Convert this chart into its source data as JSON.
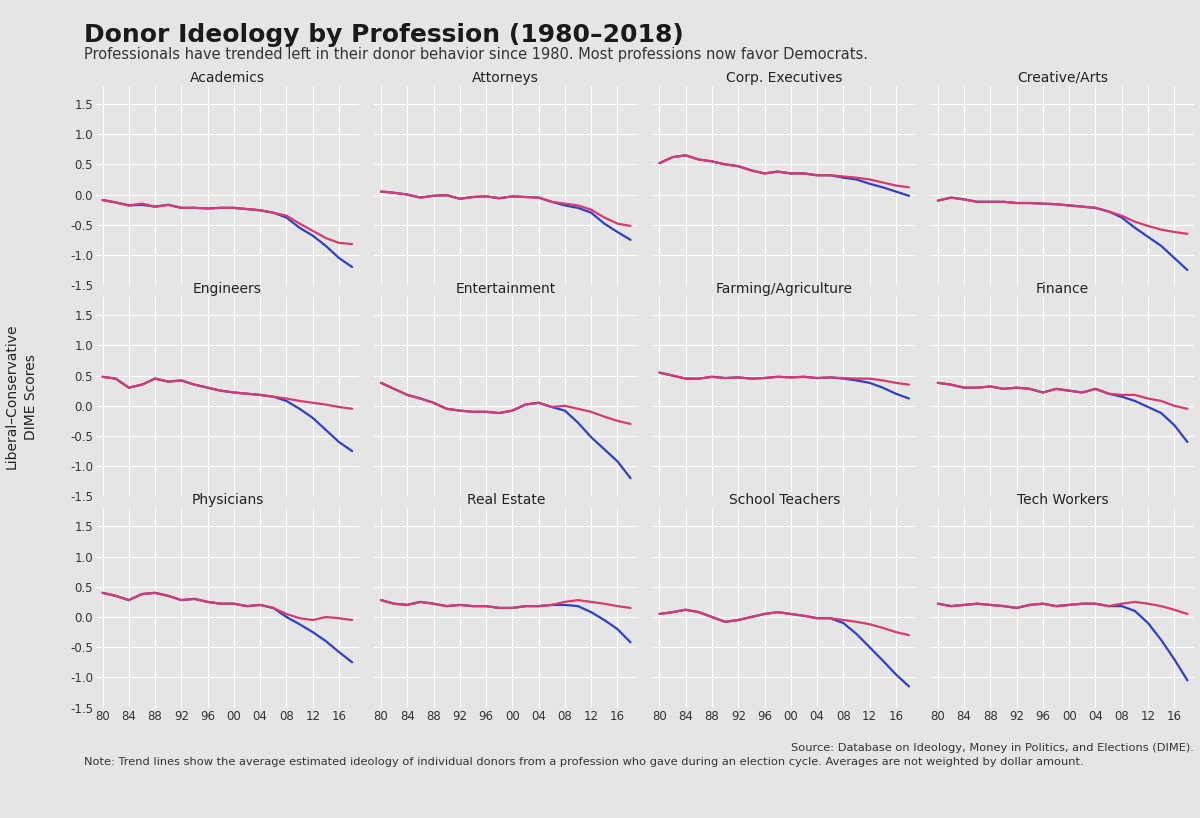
{
  "title": "Donor Ideology by Profession (1980–2018)",
  "subtitle": "Professionals have trended left in their donor behavior since 1980. Most professions now favor Democrats.",
  "ylabel": "Liberal–Conservative\nDIME Scores",
  "source": "Source: Database on Ideology, Money in Politics, and Elections (DIME).",
  "note": "Note: Trend lines show the average estimated ideology of individual donors from a profession who gave during an election cycle. Averages are not weighted by dollar amount.",
  "x_values": [
    1980,
    1982,
    1984,
    1986,
    1988,
    1990,
    1992,
    1994,
    1996,
    1998,
    2000,
    2002,
    2004,
    2006,
    2008,
    2010,
    2012,
    2014,
    2016,
    2018
  ],
  "x_tick_positions": [
    1980,
    1984,
    1988,
    1992,
    1996,
    2000,
    2004,
    2008,
    2012,
    2016
  ],
  "x_tick_labels": [
    "80",
    "84",
    "88",
    "92",
    "96",
    "00",
    "04",
    "08",
    "12",
    "16"
  ],
  "background_color": "#e5e5e5",
  "subplot_bg": "#e5e5e5",
  "grid_color": "#ffffff",
  "professions": [
    "Academics",
    "Attorneys",
    "Corp. Executives",
    "Creative/Arts",
    "Engineers",
    "Entertainment",
    "Farming/Agriculture",
    "Finance",
    "Physicians",
    "Real Estate",
    "School Teachers",
    "Tech Workers"
  ],
  "data": {
    "Academics": {
      "pink": [
        -0.09,
        -0.13,
        -0.18,
        -0.15,
        -0.2,
        -0.17,
        -0.22,
        -0.22,
        -0.23,
        -0.22,
        -0.22,
        -0.24,
        -0.26,
        -0.3,
        -0.35,
        -0.48,
        -0.6,
        -0.72,
        -0.8,
        -0.82
      ],
      "blue": [
        -0.09,
        -0.13,
        -0.18,
        -0.17,
        -0.2,
        -0.17,
        -0.22,
        -0.22,
        -0.23,
        -0.22,
        -0.22,
        -0.24,
        -0.26,
        -0.3,
        -0.38,
        -0.55,
        -0.68,
        -0.85,
        -1.05,
        -1.2
      ]
    },
    "Attorneys": {
      "pink": [
        0.05,
        0.03,
        0.0,
        -0.05,
        -0.02,
        -0.01,
        -0.07,
        -0.04,
        -0.03,
        -0.06,
        -0.03,
        -0.04,
        -0.05,
        -0.12,
        -0.15,
        -0.18,
        -0.25,
        -0.38,
        -0.48,
        -0.52
      ],
      "blue": [
        0.05,
        0.03,
        0.0,
        -0.05,
        -0.02,
        -0.01,
        -0.07,
        -0.04,
        -0.03,
        -0.06,
        -0.03,
        -0.04,
        -0.05,
        -0.12,
        -0.18,
        -0.22,
        -0.3,
        -0.48,
        -0.62,
        -0.75
      ]
    },
    "Corp. Executives": {
      "pink": [
        0.52,
        0.62,
        0.65,
        0.58,
        0.55,
        0.5,
        0.47,
        0.4,
        0.35,
        0.38,
        0.35,
        0.35,
        0.32,
        0.32,
        0.3,
        0.28,
        0.25,
        0.2,
        0.15,
        0.12
      ],
      "blue": [
        0.52,
        0.62,
        0.65,
        0.58,
        0.55,
        0.5,
        0.47,
        0.4,
        0.35,
        0.38,
        0.35,
        0.35,
        0.32,
        0.32,
        0.28,
        0.25,
        0.18,
        0.12,
        0.05,
        -0.02
      ]
    },
    "Creative/Arts": {
      "pink": [
        -0.1,
        -0.05,
        -0.08,
        -0.12,
        -0.12,
        -0.12,
        -0.14,
        -0.14,
        -0.15,
        -0.16,
        -0.18,
        -0.2,
        -0.22,
        -0.28,
        -0.35,
        -0.45,
        -0.52,
        -0.58,
        -0.62,
        -0.65
      ],
      "blue": [
        -0.1,
        -0.05,
        -0.08,
        -0.12,
        -0.12,
        -0.12,
        -0.14,
        -0.14,
        -0.15,
        -0.16,
        -0.18,
        -0.2,
        -0.22,
        -0.28,
        -0.38,
        -0.55,
        -0.7,
        -0.85,
        -1.05,
        -1.25
      ]
    },
    "Engineers": {
      "pink": [
        0.48,
        0.45,
        0.3,
        0.35,
        0.45,
        0.4,
        0.42,
        0.35,
        0.3,
        0.25,
        0.22,
        0.2,
        0.18,
        0.15,
        0.12,
        0.08,
        0.05,
        0.02,
        -0.02,
        -0.05
      ],
      "blue": [
        0.48,
        0.45,
        0.3,
        0.35,
        0.45,
        0.4,
        0.42,
        0.35,
        0.3,
        0.25,
        0.22,
        0.2,
        0.18,
        0.15,
        0.08,
        -0.05,
        -0.2,
        -0.4,
        -0.6,
        -0.75
      ]
    },
    "Entertainment": {
      "pink": [
        0.38,
        0.28,
        0.18,
        0.12,
        0.05,
        -0.05,
        -0.08,
        -0.1,
        -0.1,
        -0.12,
        -0.08,
        0.02,
        0.05,
        -0.02,
        0.0,
        -0.05,
        -0.1,
        -0.18,
        -0.25,
        -0.3
      ],
      "blue": [
        0.38,
        0.28,
        0.18,
        0.12,
        0.05,
        -0.05,
        -0.08,
        -0.1,
        -0.1,
        -0.12,
        -0.08,
        0.02,
        0.05,
        -0.02,
        -0.08,
        -0.28,
        -0.52,
        -0.72,
        -0.92,
        -1.2
      ]
    },
    "Farming/Agriculture": {
      "pink": [
        0.55,
        0.5,
        0.45,
        0.45,
        0.48,
        0.46,
        0.47,
        0.45,
        0.46,
        0.48,
        0.47,
        0.48,
        0.46,
        0.47,
        0.46,
        0.45,
        0.45,
        0.42,
        0.38,
        0.35
      ],
      "blue": [
        0.55,
        0.5,
        0.45,
        0.45,
        0.48,
        0.46,
        0.47,
        0.45,
        0.46,
        0.48,
        0.47,
        0.48,
        0.46,
        0.47,
        0.45,
        0.42,
        0.38,
        0.3,
        0.2,
        0.12
      ]
    },
    "Finance": {
      "pink": [
        0.38,
        0.35,
        0.3,
        0.3,
        0.32,
        0.28,
        0.3,
        0.28,
        0.22,
        0.28,
        0.25,
        0.22,
        0.28,
        0.2,
        0.18,
        0.18,
        0.12,
        0.08,
        0.0,
        -0.05
      ],
      "blue": [
        0.38,
        0.35,
        0.3,
        0.3,
        0.32,
        0.28,
        0.3,
        0.28,
        0.22,
        0.28,
        0.25,
        0.22,
        0.28,
        0.2,
        0.15,
        0.08,
        -0.02,
        -0.12,
        -0.32,
        -0.6
      ]
    },
    "Physicians": {
      "pink": [
        0.4,
        0.35,
        0.28,
        0.38,
        0.4,
        0.35,
        0.28,
        0.3,
        0.25,
        0.22,
        0.22,
        0.18,
        0.2,
        0.15,
        0.05,
        -0.02,
        -0.05,
        0.0,
        -0.02,
        -0.05
      ],
      "blue": [
        0.4,
        0.35,
        0.28,
        0.38,
        0.4,
        0.35,
        0.28,
        0.3,
        0.25,
        0.22,
        0.22,
        0.18,
        0.2,
        0.15,
        0.0,
        -0.12,
        -0.25,
        -0.4,
        -0.58,
        -0.75
      ]
    },
    "Real Estate": {
      "pink": [
        0.28,
        0.22,
        0.2,
        0.25,
        0.22,
        0.18,
        0.2,
        0.18,
        0.18,
        0.15,
        0.15,
        0.18,
        0.18,
        0.2,
        0.25,
        0.28,
        0.25,
        0.22,
        0.18,
        0.15
      ],
      "blue": [
        0.28,
        0.22,
        0.2,
        0.25,
        0.22,
        0.18,
        0.2,
        0.18,
        0.18,
        0.15,
        0.15,
        0.18,
        0.18,
        0.2,
        0.2,
        0.18,
        0.08,
        -0.05,
        -0.2,
        -0.42
      ]
    },
    "School Teachers": {
      "pink": [
        0.05,
        0.08,
        0.12,
        0.08,
        0.0,
        -0.08,
        -0.05,
        0.0,
        0.05,
        0.08,
        0.05,
        0.02,
        -0.02,
        -0.02,
        -0.05,
        -0.08,
        -0.12,
        -0.18,
        -0.25,
        -0.3
      ],
      "blue": [
        0.05,
        0.08,
        0.12,
        0.08,
        0.0,
        -0.08,
        -0.05,
        0.0,
        0.05,
        0.08,
        0.05,
        0.02,
        -0.02,
        -0.02,
        -0.1,
        -0.28,
        -0.5,
        -0.72,
        -0.95,
        -1.15
      ]
    },
    "Tech Workers": {
      "pink": [
        0.22,
        0.18,
        0.2,
        0.22,
        0.2,
        0.18,
        0.15,
        0.2,
        0.22,
        0.18,
        0.2,
        0.22,
        0.22,
        0.18,
        0.22,
        0.25,
        0.22,
        0.18,
        0.12,
        0.05
      ],
      "blue": [
        0.22,
        0.18,
        0.2,
        0.22,
        0.2,
        0.18,
        0.15,
        0.2,
        0.22,
        0.18,
        0.2,
        0.22,
        0.22,
        0.18,
        0.18,
        0.1,
        -0.1,
        -0.38,
        -0.7,
        -1.05
      ]
    }
  },
  "ylim": [
    -1.5,
    1.8
  ],
  "yticks": [
    -1.5,
    -1.0,
    -0.5,
    0.0,
    0.5,
    1.0,
    1.5
  ],
  "pink_color": "#d63a6e",
  "blue_color": "#3040c0",
  "linewidth": 1.6
}
